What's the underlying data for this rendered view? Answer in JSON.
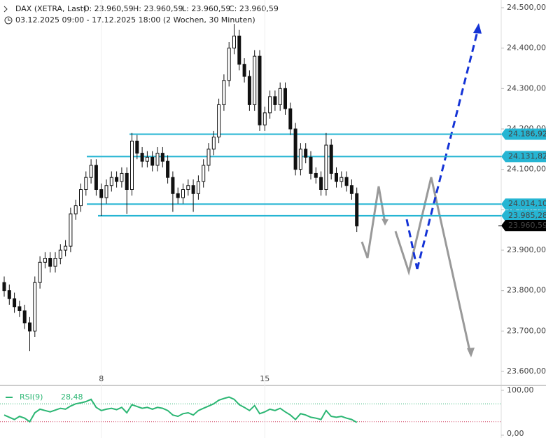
{
  "chart_data": {
    "type": "candlestick",
    "title": "DAX (XETRA, Last)",
    "ohlc_header": [
      "O: 23.960,59",
      "H: 23.960,59",
      "L: 23.960,59",
      "C: 23.960,59"
    ],
    "subtitle": "03.12.2025 09:00 - 17.12.2025 18:00  (2 Wochen, 30 Minuten)",
    "categories": [
      null,
      null,
      null,
      null,
      null,
      null,
      null,
      null,
      null,
      null,
      null,
      null,
      null,
      null,
      null,
      null,
      null,
      null,
      null,
      "8",
      null,
      null,
      null,
      null,
      null,
      null,
      null,
      null,
      null,
      null,
      null,
      null,
      null,
      null,
      null,
      null,
      null,
      null,
      null,
      null,
      null,
      null,
      null,
      null,
      null,
      null,
      null,
      null,
      null,
      null,
      null,
      "15",
      null,
      null,
      null,
      null,
      null,
      null,
      null,
      null,
      null,
      null,
      null,
      null,
      null,
      null,
      null,
      null,
      null,
      null
    ],
    "open": [
      23820,
      23800,
      23780,
      23760,
      23750,
      23720,
      23700,
      23820,
      23870,
      23880,
      23860,
      23880,
      23900,
      23910,
      23990,
      24010,
      24050,
      24080,
      24110,
      24050,
      24030,
      24060,
      24080,
      24070,
      24090,
      24050,
      24170,
      24140,
      24120,
      24130,
      24110,
      24140,
      24120,
      24080,
      24040,
      24030,
      24050,
      24060,
      24040,
      24070,
      24110,
      24150,
      24180,
      24260,
      24320,
      24400,
      24430,
      24360,
      24330,
      24260,
      24380,
      24210,
      24240,
      24280,
      24260,
      24300,
      24250,
      24200,
      24100,
      24150,
      24130,
      24090,
      24080,
      24050,
      24160,
      24090,
      24070,
      24080,
      24060,
      24040
    ],
    "high": [
      23835,
      23815,
      23795,
      23775,
      23765,
      23735,
      23835,
      23885,
      23895,
      23895,
      23895,
      23915,
      23925,
      24005,
      24025,
      24065,
      24095,
      24125,
      24125,
      24065,
      24075,
      24095,
      24095,
      24105,
      24105,
      24190,
      24185,
      24155,
      24145,
      24145,
      24155,
      24155,
      24135,
      24095,
      24055,
      24065,
      24075,
      24075,
      24085,
      24125,
      24165,
      24195,
      24275,
      24335,
      24415,
      24460,
      24445,
      24375,
      24345,
      24395,
      24395,
      24255,
      24295,
      24295,
      24315,
      24315,
      24265,
      24215,
      24165,
      24165,
      24145,
      24105,
      24095,
      24190,
      24175,
      24105,
      24095,
      24095,
      24075,
      24055
    ],
    "low": [
      23785,
      23765,
      23745,
      23735,
      23705,
      23650,
      23685,
      23805,
      23855,
      23845,
      23845,
      23865,
      23885,
      23895,
      23975,
      23995,
      24035,
      24065,
      24035,
      23985,
      24015,
      24045,
      24055,
      24055,
      23990,
      24035,
      24125,
      24105,
      24105,
      24095,
      24095,
      24105,
      24065,
      23995,
      24015,
      24015,
      24035,
      23995,
      24025,
      24055,
      24095,
      24135,
      24165,
      24245,
      24305,
      24385,
      24345,
      24315,
      24245,
      24245,
      24195,
      24195,
      24225,
      24245,
      24245,
      24235,
      24185,
      24085,
      24085,
      24115,
      24075,
      24065,
      24035,
      24035,
      24075,
      24055,
      24055,
      24045,
      24025,
      23945
    ],
    "close": [
      23800,
      23780,
      23760,
      23750,
      23720,
      23700,
      23820,
      23870,
      23880,
      23860,
      23880,
      23900,
      23910,
      23990,
      24010,
      24050,
      24080,
      24110,
      24050,
      24030,
      24060,
      24080,
      24070,
      24090,
      24050,
      24170,
      24140,
      24120,
      24130,
      24110,
      24140,
      24120,
      24080,
      24040,
      24030,
      24050,
      24060,
      24040,
      24070,
      24110,
      24150,
      24180,
      24260,
      24320,
      24400,
      24430,
      24360,
      24330,
      24260,
      24380,
      24210,
      24240,
      24280,
      24260,
      24300,
      24250,
      24200,
      24100,
      24150,
      24130,
      24090,
      24080,
      24050,
      24160,
      24090,
      24070,
      24080,
      24060,
      24040,
      23960
    ],
    "color": "#111111",
    "ylim": [
      23600,
      24500
    ],
    "yticks": [
      {
        "value": 23600,
        "label": "23.600,00"
      },
      {
        "value": 23700,
        "label": "23.700,00"
      },
      {
        "value": 23800,
        "label": "23.800,00"
      },
      {
        "value": 23900,
        "label": "23.900,00"
      },
      {
        "value": 24000,
        "label": "24.000,00"
      },
      {
        "value": 24100,
        "label": "24.100,00"
      },
      {
        "value": 24200,
        "label": "24.200,00"
      },
      {
        "value": 24300,
        "label": "24.300,00"
      },
      {
        "value": 24400,
        "label": "24.400,00"
      },
      {
        "value": 24500,
        "label": "24.500,00"
      }
    ],
    "levels": [
      {
        "value": 24186.92,
        "label": "24.186,92"
      },
      {
        "value": 24131.82,
        "label": "24.131,82"
      },
      {
        "value": 24014.1,
        "label": "24.014,10"
      },
      {
        "value": 23985.28,
        "label": "23.985,28"
      }
    ],
    "level_color": "#26b5d3",
    "last_price": {
      "value": 23960.59,
      "label": "23.960,59"
    },
    "rsi": {
      "name": "RSI(9)",
      "last_label": "28,48",
      "color": "#2bb673",
      "values": [
        45,
        40,
        35,
        42,
        38,
        30,
        50,
        58,
        55,
        52,
        56,
        60,
        58,
        65,
        70,
        72,
        75,
        80,
        62,
        55,
        58,
        60,
        57,
        62,
        50,
        68,
        64,
        60,
        62,
        58,
        62,
        60,
        55,
        45,
        42,
        48,
        50,
        45,
        55,
        60,
        65,
        70,
        78,
        82,
        85,
        80,
        68,
        62,
        55,
        66,
        48,
        52,
        58,
        55,
        60,
        52,
        45,
        35,
        48,
        45,
        40,
        38,
        35,
        55,
        42,
        40,
        42,
        38,
        35,
        28.48
      ],
      "ylim": [
        0,
        100
      ],
      "yticks": [
        {
          "value": 0,
          "label": "0,00"
        },
        {
          "value": 100,
          "label": "100,00"
        }
      ],
      "bands": [
        30,
        70
      ]
    }
  }
}
